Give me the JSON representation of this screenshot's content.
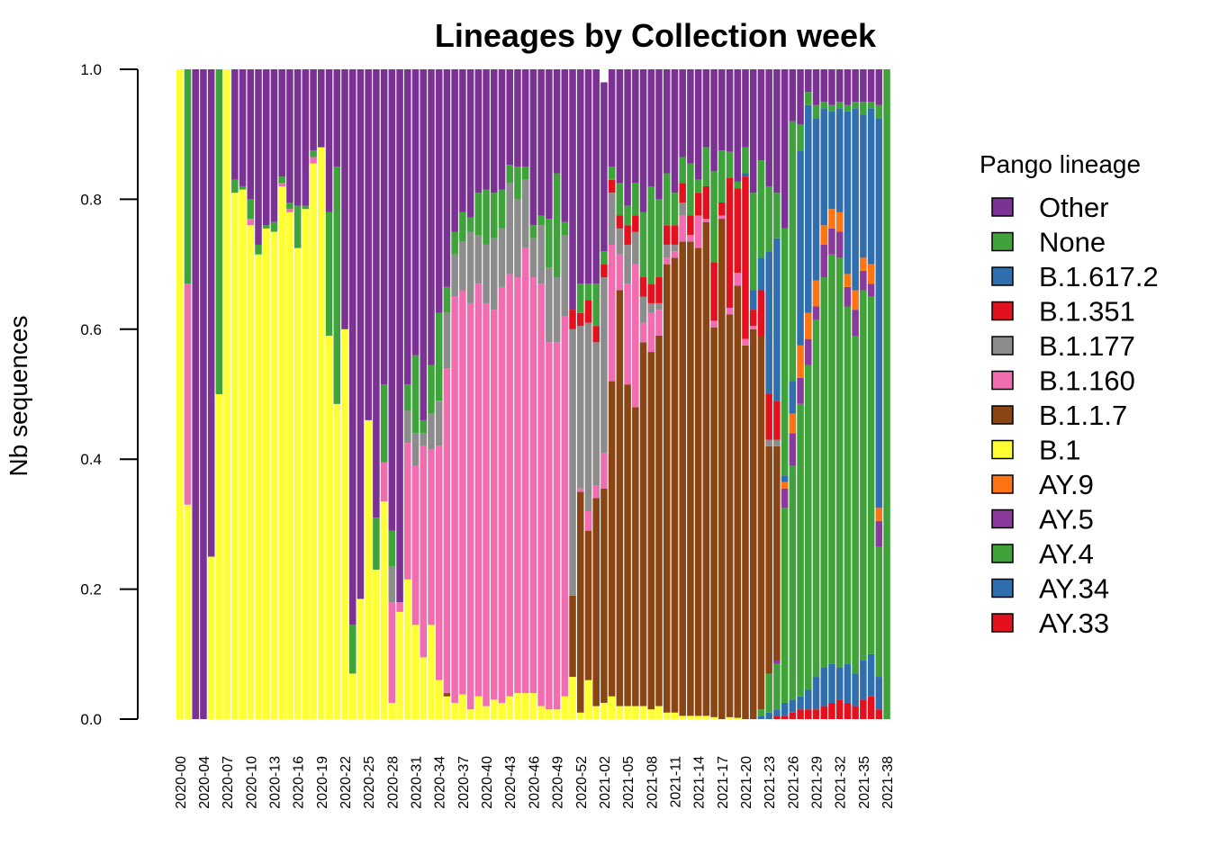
{
  "chart_data": {
    "type": "bar",
    "stacked": true,
    "title": "Lineages by Collection week",
    "xlabel": "",
    "ylabel": "Nb sequences",
    "ylim": [
      0,
      1
    ],
    "y_ticks": [
      "0.0",
      "0.2",
      "0.4",
      "0.6",
      "0.8",
      "1.0"
    ],
    "x_tick_labels": [
      "2020-00",
      "2020-04",
      "2020-07",
      "2020-10",
      "2020-13",
      "2020-16",
      "2020-19",
      "2020-22",
      "2020-25",
      "2020-28",
      "2020-31",
      "2020-34",
      "2020-37",
      "2020-40",
      "2020-43",
      "2020-46",
      "2020-49",
      "2020-52",
      "2021-02",
      "2021-05",
      "2021-08",
      "2021-11",
      "2021-14",
      "2021-17",
      "2021-20",
      "2021-23",
      "2021-26",
      "2021-29",
      "2021-32",
      "2021-35",
      "2021-38"
    ],
    "legend": {
      "title": "Pango lineage",
      "position": "right",
      "items": [
        {
          "label": "Other",
          "color": "#7b3294"
        },
        {
          "label": "None",
          "color": "#3ea33a"
        },
        {
          "label": "B.1.617.2",
          "color": "#2f6fb0"
        },
        {
          "label": "B.1.351",
          "color": "#e3101e"
        },
        {
          "label": "B.1.177",
          "color": "#8c8c8c"
        },
        {
          "label": "B.1.160",
          "color": "#f26db0"
        },
        {
          "label": "B.1.1.7",
          "color": "#8b4513"
        },
        {
          "label": "B.1",
          "color": "#ffff33"
        },
        {
          "label": "AY.9",
          "color": "#ff7412"
        },
        {
          "label": "AY.5",
          "color": "#8a3a9c"
        },
        {
          "label": "AY.4",
          "color": "#40a33a"
        },
        {
          "label": "AY.34",
          "color": "#2f6fb0"
        },
        {
          "label": "AY.33",
          "color": "#e3101e"
        }
      ]
    },
    "stack_order": [
      "AY.33",
      "AY.34",
      "AY.4",
      "AY.5",
      "AY.9",
      "B.1",
      "B.1.1.7",
      "B.1.160",
      "B.1.177",
      "B.1.351",
      "B.1.617.2",
      "None",
      "Other"
    ],
    "bars": [
      [
        0,
        0,
        0,
        0,
        0,
        1,
        0,
        0,
        0,
        0,
        0,
        0,
        0
      ],
      [
        0,
        0,
        0,
        0,
        0,
        0.33,
        0,
        0.34,
        0,
        0,
        0,
        0.33,
        0
      ],
      [
        0,
        0,
        0,
        0,
        0,
        0,
        0,
        0,
        0,
        0,
        0,
        0,
        1
      ],
      [
        0,
        0,
        0,
        0,
        0,
        0,
        0,
        0,
        0,
        0,
        0,
        0,
        1
      ],
      [
        0,
        0,
        0,
        0,
        0,
        0.25,
        0,
        0,
        0,
        0,
        0,
        0,
        0.75
      ],
      [
        0,
        0,
        0,
        0,
        0,
        0.5,
        0,
        0,
        0,
        0,
        0,
        0.5,
        0
      ],
      [
        0,
        0,
        0,
        0,
        0,
        1,
        0,
        0,
        0,
        0,
        0,
        0,
        0
      ],
      [
        0,
        0,
        0,
        0,
        0,
        0.81,
        0,
        0,
        0,
        0,
        0,
        0.02,
        0.17
      ],
      [
        0,
        0,
        0,
        0,
        0,
        0.815,
        0,
        0,
        0,
        0,
        0,
        0.005,
        0.18
      ],
      [
        0,
        0,
        0,
        0,
        0,
        0.76,
        0,
        0.01,
        0,
        0,
        0,
        0.03,
        0.2
      ],
      [
        0,
        0,
        0,
        0,
        0,
        0.715,
        0,
        0,
        0,
        0,
        0,
        0.015,
        0.27
      ],
      [
        0,
        0,
        0,
        0,
        0,
        0.755,
        0,
        0,
        0,
        0,
        0,
        0.005,
        0.24
      ],
      [
        0,
        0,
        0,
        0,
        0,
        0.75,
        0,
        0,
        0,
        0,
        0,
        0.015,
        0.235
      ],
      [
        0,
        0,
        0,
        0,
        0,
        0.82,
        0,
        0.005,
        0,
        0,
        0,
        0.01,
        0.165
      ],
      [
        0,
        0,
        0,
        0,
        0,
        0.78,
        0,
        0.005,
        0,
        0,
        0,
        0.01,
        0.205
      ],
      [
        0,
        0,
        0,
        0,
        0,
        0.725,
        0,
        0,
        0,
        0,
        0,
        0.065,
        0.21
      ],
      [
        0,
        0,
        0,
        0,
        0,
        0.785,
        0,
        0,
        0,
        0,
        0,
        0.005,
        0.21
      ],
      [
        0,
        0,
        0,
        0,
        0,
        0.855,
        0,
        0.01,
        0,
        0,
        0,
        0.01,
        0.125
      ],
      [
        0,
        0,
        0,
        0,
        0,
        0.88,
        0,
        0,
        0,
        0,
        0,
        0,
        0.12
      ],
      [
        0,
        0,
        0,
        0,
        0,
        0.59,
        0,
        0,
        0,
        0,
        0,
        0.19,
        0.22
      ],
      [
        0,
        0,
        0,
        0,
        0,
        0.485,
        0,
        0,
        0,
        0,
        0,
        0.365,
        0.15
      ],
      [
        0,
        0,
        0,
        0,
        0,
        0.6,
        0,
        0,
        0,
        0,
        0,
        0,
        0.4
      ],
      [
        0,
        0,
        0,
        0,
        0,
        0.07,
        0,
        0,
        0,
        0,
        0,
        0.075,
        0.855
      ],
      [
        0,
        0,
        0,
        0,
        0,
        0.185,
        0,
        0,
        0,
        0,
        0,
        0,
        0.815
      ],
      [
        0,
        0,
        0,
        0,
        0,
        0.46,
        0,
        0,
        0,
        0,
        0,
        0,
        0.54
      ],
      [
        0,
        0,
        0,
        0,
        0,
        0.23,
        0,
        0,
        0,
        0,
        0,
        0.08,
        0.69
      ],
      [
        0,
        0,
        0,
        0,
        0,
        0.335,
        0,
        0.06,
        0,
        0,
        0,
        0.12,
        0.485
      ],
      [
        0,
        0,
        0,
        0,
        0,
        0.025,
        0,
        0.155,
        0.055,
        0,
        0,
        0.055,
        0.71
      ],
      [
        0,
        0,
        0,
        0,
        0,
        0.165,
        0,
        0.015,
        0,
        0,
        0,
        0,
        0.82
      ],
      [
        0,
        0,
        0,
        0,
        0,
        0.215,
        0,
        0.21,
        0.05,
        0,
        0,
        0.04,
        0.485
      ],
      [
        0,
        0,
        0,
        0,
        0,
        0.145,
        0,
        0.245,
        0.05,
        0,
        0,
        0.12,
        0.44
      ],
      [
        0,
        0,
        0,
        0,
        0,
        0.095,
        0,
        0.325,
        0.02,
        0,
        0,
        0.02,
        0.54
      ],
      [
        0,
        0,
        0,
        0,
        0,
        0.145,
        0,
        0.27,
        0.055,
        0,
        0,
        0.075,
        0.455
      ],
      [
        0,
        0,
        0,
        0,
        0,
        0.06,
        0,
        0.36,
        0.07,
        0,
        0,
        0.135,
        0.375
      ],
      [
        0,
        0,
        0,
        0,
        0,
        0.035,
        0.005,
        0.5,
        0.085,
        0,
        0,
        0.04,
        0.335
      ],
      [
        0,
        0,
        0,
        0,
        0,
        0.025,
        0,
        0.625,
        0.065,
        0,
        0,
        0.035,
        0.25
      ],
      [
        0,
        0,
        0,
        0,
        0,
        0.038,
        0,
        0.622,
        0.075,
        0,
        0,
        0.045,
        0.22
      ],
      [
        0,
        0,
        0,
        0,
        0,
        0.015,
        0,
        0.625,
        0.11,
        0,
        0,
        0.022,
        0.228
      ],
      [
        0,
        0,
        0,
        0,
        0,
        0.035,
        0,
        0.635,
        0.075,
        0,
        0,
        0.065,
        0.19
      ],
      [
        0,
        0,
        0,
        0,
        0,
        0.02,
        0,
        0.62,
        0.09,
        0,
        0,
        0.085,
        0.185
      ],
      [
        0,
        0,
        0,
        0,
        0,
        0.03,
        0,
        0.6,
        0.11,
        0,
        0,
        0.07,
        0.19
      ],
      [
        0,
        0,
        0,
        0,
        0,
        0.025,
        0,
        0.64,
        0.09,
        0,
        0,
        0.06,
        0.185
      ],
      [
        0,
        0,
        0,
        0,
        0,
        0.035,
        0,
        0.65,
        0.14,
        0,
        0,
        0.028,
        0.147
      ],
      [
        0,
        0,
        0,
        0,
        0,
        0.04,
        0,
        0.64,
        0.12,
        0,
        0,
        0.05,
        0.15
      ],
      [
        0,
        0,
        0,
        0,
        0,
        0.04,
        0,
        0.685,
        0.105,
        0,
        0,
        0.02,
        0.15
      ],
      [
        0,
        0,
        0,
        0,
        0,
        0.04,
        0,
        0.64,
        0.06,
        0,
        0,
        0.02,
        0.24
      ],
      [
        0,
        0,
        0,
        0,
        0,
        0.02,
        0,
        0.65,
        0.09,
        0,
        0,
        0.015,
        0.225
      ],
      [
        0,
        0,
        0,
        0,
        0,
        0.015,
        0,
        0.565,
        0.115,
        0,
        0,
        0.075,
        0.23
      ],
      [
        0,
        0,
        0,
        0,
        0,
        0.015,
        0,
        0.565,
        0.1,
        0,
        0,
        0.16,
        0.16
      ],
      [
        0,
        0,
        0,
        0,
        0,
        0.035,
        0,
        0.585,
        0.125,
        0,
        0,
        0.02,
        0.235
      ],
      [
        0,
        0,
        0,
        0,
        0,
        0.065,
        0.125,
        0,
        0.41,
        0.03,
        0,
        0,
        0.37
      ],
      [
        0,
        0,
        0,
        0,
        0,
        0.01,
        0.34,
        0.005,
        0.25,
        0.02,
        0,
        0.045,
        0.33
      ],
      [
        0,
        0,
        0,
        0,
        0,
        0.06,
        0.23,
        0.03,
        0.29,
        0.035,
        0,
        0.025,
        0.33
      ],
      [
        0,
        0,
        0,
        0,
        0,
        0.02,
        0.32,
        0.02,
        0.22,
        0.025,
        0,
        0.065,
        0.33
      ],
      [
        0,
        0,
        0,
        0,
        0,
        0.025,
        0.33,
        0.055,
        0.27,
        0.02,
        0,
        0.02,
        0.26
      ],
      [
        0,
        0,
        0,
        0,
        0,
        0.035,
        0.485,
        0.21,
        0.08,
        0.02,
        0,
        0.02,
        0.15
      ],
      [
        0,
        0,
        0,
        0,
        0,
        0.02,
        0.64,
        0.055,
        0.04,
        0.02,
        0,
        0.05,
        0.175
      ],
      [
        0,
        0,
        0,
        0,
        0,
        0.02,
        0.495,
        0.155,
        0.06,
        0.03,
        0,
        0.03,
        0.21
      ],
      [
        0,
        0,
        0,
        0,
        0,
        0.02,
        0.46,
        0.22,
        0.05,
        0.025,
        0,
        0.05,
        0.175
      ],
      [
        0,
        0,
        0,
        0,
        0,
        0.02,
        0.56,
        0.03,
        0.04,
        0.03,
        0,
        0.1,
        0.22
      ],
      [
        0,
        0,
        0,
        0,
        0,
        0.015,
        0.55,
        0.06,
        0.015,
        0.03,
        0,
        0.15,
        0.18
      ],
      [
        0,
        0,
        0,
        0,
        0,
        0.02,
        0.57,
        0.04,
        0.01,
        0.04,
        0,
        0.12,
        0.2
      ],
      [
        0,
        0,
        0,
        0,
        0,
        0.01,
        0.69,
        0.01,
        0.02,
        0.03,
        0,
        0.08,
        0.16
      ],
      [
        0,
        0,
        0,
        0,
        0,
        0.01,
        0.7,
        0.01,
        0.01,
        0.03,
        0,
        0.05,
        0.19
      ],
      [
        0,
        0,
        0,
        0,
        0,
        0.005,
        0.73,
        0.04,
        0.02,
        0.03,
        0,
        0.04,
        0.135
      ],
      [
        0,
        0,
        0,
        0,
        0,
        0.005,
        0.73,
        0.01,
        0,
        0.03,
        0,
        0.08,
        0.145
      ],
      [
        0,
        0,
        0,
        0,
        0,
        0.005,
        0.72,
        0.05,
        0,
        0.035,
        0,
        0.02,
        0.17
      ],
      [
        0,
        0,
        0,
        0,
        0,
        0.005,
        0.76,
        0.005,
        0,
        0.05,
        0,
        0.06,
        0.12
      ],
      [
        0,
        0,
        0,
        0,
        0,
        0.003,
        0.6,
        0.01,
        0,
        0.09,
        0,
        0.14,
        0.157
      ],
      [
        0,
        0,
        0,
        0,
        0,
        0,
        0.77,
        0.005,
        0,
        0.02,
        0,
        0.08,
        0.125
      ],
      [
        0,
        0,
        0,
        0,
        0,
        0.003,
        0.62,
        0.01,
        0,
        0.2,
        0,
        0.04,
        0.127
      ],
      [
        0,
        0,
        0,
        0,
        0,
        0.002,
        0.665,
        0.02,
        0,
        0.13,
        0,
        0.01,
        0.173
      ],
      [
        0,
        0,
        0,
        0,
        0,
        0,
        0.575,
        0.01,
        0,
        0.25,
        0.005,
        0.04,
        0.12
      ],
      [
        0,
        0,
        0,
        0,
        0,
        0,
        0.6,
        0.005,
        0,
        0.025,
        0.03,
        0.15,
        0.19
      ],
      [
        0,
        0.005,
        0.01,
        0,
        0,
        0,
        0.575,
        0,
        0,
        0.07,
        0.05,
        0.15,
        0.14
      ],
      [
        0,
        0.01,
        0.06,
        0,
        0,
        0,
        0.35,
        0,
        0.01,
        0.07,
        0.22,
        0.1,
        0.18
      ],
      [
        0.005,
        0.01,
        0.07,
        0.005,
        0,
        0,
        0.33,
        0,
        0.01,
        0.06,
        0.25,
        0.07,
        0.19
      ],
      [
        0.005,
        0.02,
        0.3,
        0.03,
        0.01,
        0,
        0,
        0,
        0,
        0,
        0.01,
        0.38,
        0.245
      ],
      [
        0.01,
        0.02,
        0.36,
        0.05,
        0.03,
        0,
        0,
        0,
        0,
        0,
        0.05,
        0.4,
        0.08
      ],
      [
        0.015,
        0.02,
        0.45,
        0.04,
        0.05,
        0,
        0,
        0,
        0,
        0,
        0.3,
        0.04,
        0.085
      ],
      [
        0.015,
        0.03,
        0.5,
        0.04,
        0.04,
        0,
        0,
        0,
        0,
        0,
        0.32,
        0.02,
        0.035
      ],
      [
        0.015,
        0.05,
        0.55,
        0.02,
        0.04,
        0,
        0,
        0,
        0,
        0,
        0.25,
        0.02,
        0.055
      ],
      [
        0.02,
        0.06,
        0.6,
        0.05,
        0.03,
        0,
        0,
        0,
        0,
        0,
        0.18,
        0.01,
        0.05
      ],
      [
        0.025,
        0.06,
        0.63,
        0.04,
        0.03,
        0,
        0,
        0,
        0,
        0,
        0.15,
        0.01,
        0.055
      ],
      [
        0.03,
        0.05,
        0.63,
        0.04,
        0.03,
        0,
        0,
        0,
        0,
        0,
        0.16,
        0.01,
        0.05
      ],
      [
        0.025,
        0.06,
        0.55,
        0.03,
        0.02,
        0,
        0,
        0,
        0,
        0,
        0.25,
        0.01,
        0.055
      ],
      [
        0.02,
        0.05,
        0.52,
        0.04,
        0.03,
        0,
        0,
        0,
        0,
        0,
        0.28,
        0.01,
        0.05
      ],
      [
        0.03,
        0.06,
        0.57,
        0.03,
        0.02,
        0,
        0,
        0,
        0,
        0,
        0.22,
        0.02,
        0.05
      ],
      [
        0.035,
        0.065,
        0.55,
        0.02,
        0.03,
        0,
        0,
        0,
        0,
        0,
        0.24,
        0.01,
        0.05
      ],
      [
        0.015,
        0.05,
        0.2,
        0.04,
        0.02,
        0,
        0,
        0,
        0,
        0,
        0.6,
        0.02,
        0.055
      ],
      [
        0,
        0,
        1,
        0,
        0,
        0,
        0,
        0,
        0,
        0,
        0,
        0,
        0
      ]
    ]
  }
}
